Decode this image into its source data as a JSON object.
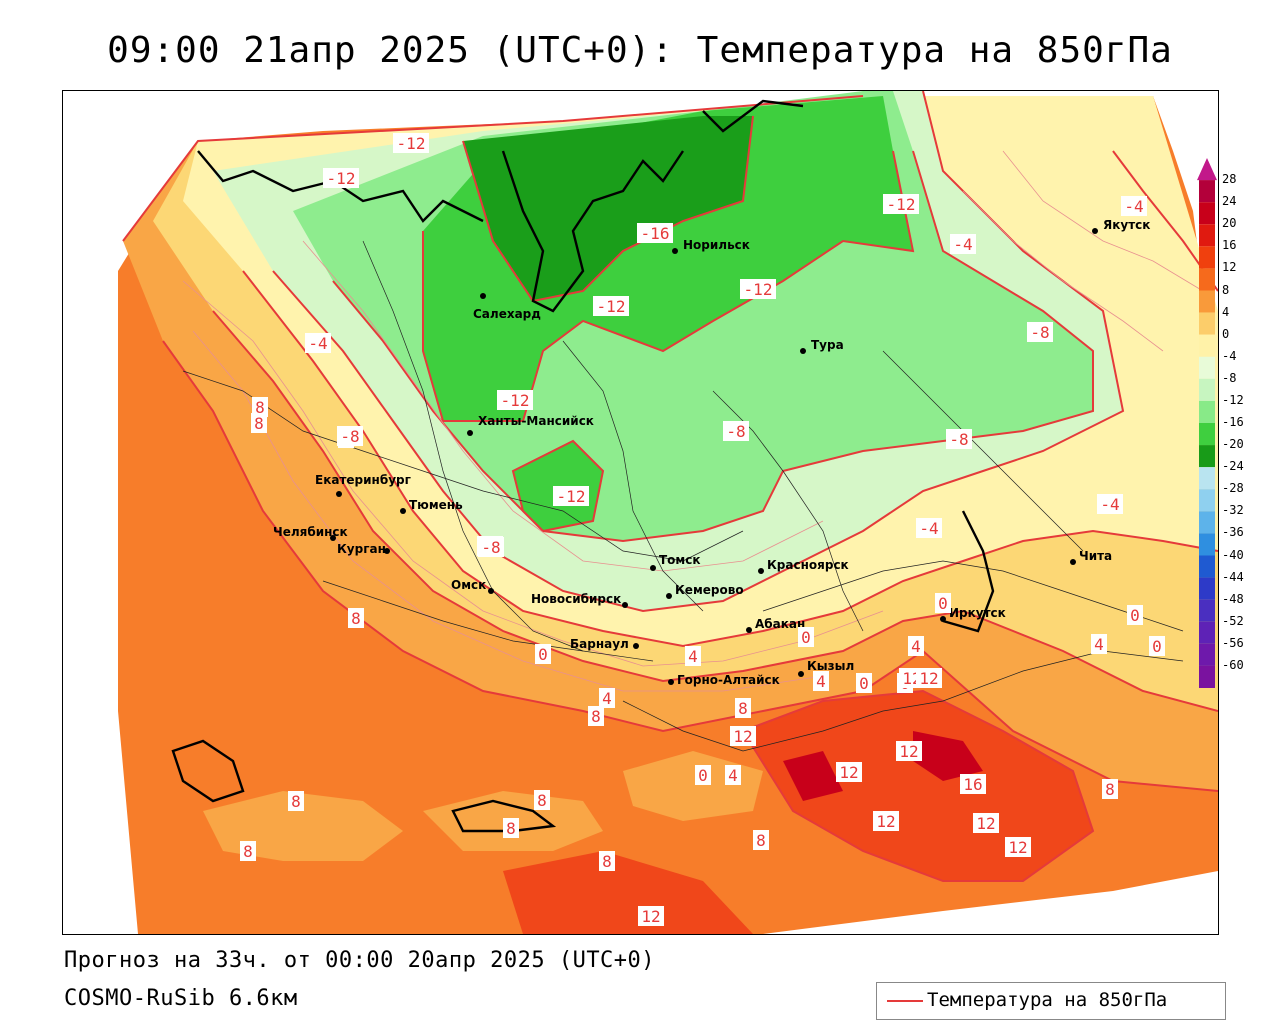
{
  "title": "09:00 21апр 2025 (UTC+0): Температура на 850гПа",
  "forecast_info": "Прогноз на 33ч. от 00:00 20апр 2025 (UTC+0)",
  "model_info": "COSMO-RuSib 6.6км",
  "legend": {
    "label": "Температура на 850гПа",
    "line_color": "#e53a3a"
  },
  "colorbar": {
    "levels": [
      "28",
      "24",
      "20",
      "16",
      "12",
      "8",
      "4",
      "0",
      "-4",
      "-8",
      "-12",
      "-16",
      "-20",
      "-24",
      "-28",
      "-32",
      "-36",
      "-40",
      "-44",
      "-48",
      "-52",
      "-56",
      "-60"
    ],
    "colors": [
      "#b3003a",
      "#c8001a",
      "#e01a10",
      "#f0400e",
      "#f66a1c",
      "#f99a3a",
      "#fccd6a",
      "#fff2a8",
      "#e8fbd8",
      "#c7f5c0",
      "#88ea88",
      "#3fcf3f",
      "#189b18",
      "#b9e4f0",
      "#8fd0ef",
      "#5db3ea",
      "#2f8fe0",
      "#1f5ad1",
      "#2d3ac8",
      "#4a2fc0",
      "#5e22b6",
      "#6e19ab",
      "#7a129f"
    ]
  },
  "cities": [
    {
      "name": "Якутск"
    },
    {
      "name": "Норильск"
    },
    {
      "name": "Салехард"
    },
    {
      "name": "Тура"
    },
    {
      "name": "Ханты-Мансийск"
    },
    {
      "name": "Екатеринбург"
    },
    {
      "name": "Тюмень"
    },
    {
      "name": "Челябинск"
    },
    {
      "name": "Курган"
    },
    {
      "name": "Омск"
    },
    {
      "name": "Новосибирск"
    },
    {
      "name": "Томск"
    },
    {
      "name": "Кемерово"
    },
    {
      "name": "Красноярск"
    },
    {
      "name": "Абакан"
    },
    {
      "name": "Барнаул"
    },
    {
      "name": "Горно-Алтайск"
    },
    {
      "name": "Кызыл"
    },
    {
      "name": "Иркутск"
    },
    {
      "name": "Чита"
    }
  ],
  "contour_labels": [
    "-12",
    "-12",
    "-16",
    "-12",
    "-12",
    "-12",
    "-12",
    "-12",
    "-4",
    "-4",
    "0",
    "-4",
    "-8",
    "-8",
    "-8",
    "-8",
    "-8",
    "-4",
    "-4",
    "8",
    "8",
    "0",
    "-8",
    "8",
    "0",
    "4",
    "8",
    "4",
    "0",
    "4",
    "4",
    "0",
    "0",
    "4",
    "0",
    "0",
    "12",
    "8",
    "12",
    "12",
    "12",
    "12",
    "16",
    "12",
    "12",
    "12",
    "8",
    "0",
    "4",
    "8",
    "8",
    "8",
    "8",
    "8",
    "8",
    "8",
    "12"
  ]
}
